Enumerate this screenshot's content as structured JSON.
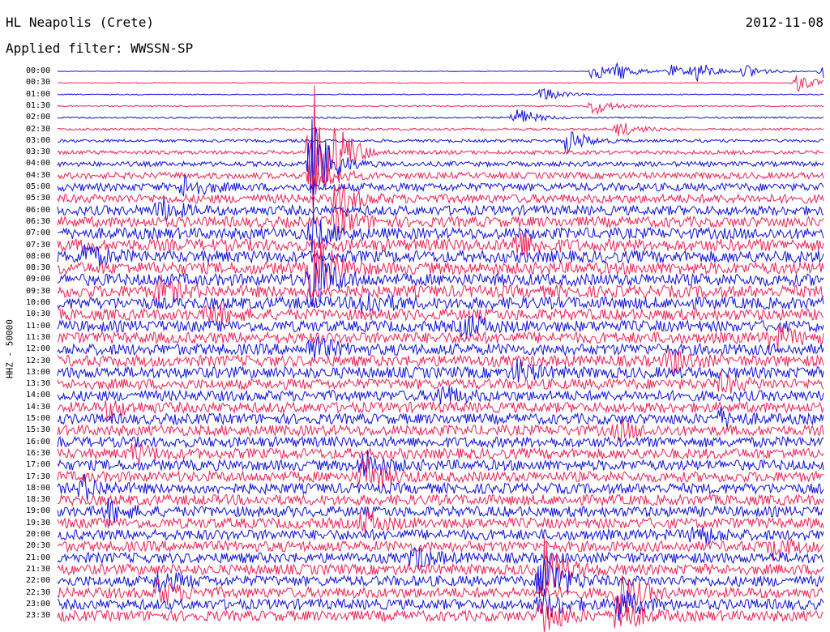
{
  "header": {
    "station_title": "HL Neapolis (Crete)",
    "date": "2012-11-08",
    "filter_prefix": "Applied filter:",
    "filter_name": "WWSSN-SP",
    "channel_label": "HHZ - 50000"
  },
  "colors": {
    "even_trace": "#1010dd",
    "odd_trace": "#ee2255",
    "text": "#000000",
    "background": "#ffffff"
  },
  "chart_data": {
    "type": "line",
    "title": "HL Neapolis (Crete)",
    "subtitle": "Applied filter: WWSSN-SP",
    "ylabel": "HHZ - 50000",
    "xlabel": "",
    "row_labels": [
      "00:00",
      "00:30",
      "01:00",
      "01:30",
      "02:00",
      "02:30",
      "03:00",
      "03:30",
      "04:00",
      "04:30",
      "05:00",
      "05:30",
      "06:00",
      "06:30",
      "07:00",
      "07:30",
      "08:00",
      "08:30",
      "09:00",
      "09:30",
      "10:00",
      "10:30",
      "11:00",
      "11:30",
      "12:00",
      "12:30",
      "13:00",
      "13:30",
      "14:00",
      "14:30",
      "15:00",
      "15:30",
      "16:00",
      "16:30",
      "17:00",
      "17:30",
      "18:00",
      "18:30",
      "19:00",
      "19:30",
      "20:00",
      "20:30",
      "21:00",
      "21:30",
      "22:00",
      "22:30",
      "23:00",
      "23:30"
    ],
    "row_noise_level": [
      0.3,
      0.5,
      0.6,
      0.8,
      1.0,
      1.4,
      1.8,
      2.4,
      3.0,
      4.0,
      5.0,
      5.5,
      6.0,
      6.5,
      7.0,
      7.5,
      7.5,
      7.5,
      7.5,
      7.5,
      7.5,
      7.0,
      7.0,
      7.0,
      7.0,
      7.0,
      7.0,
      6.5,
      6.5,
      6.5,
      6.5,
      6.5,
      6.5,
      6.5,
      6.5,
      6.5,
      6.5,
      6.5,
      6.5,
      6.5,
      6.5,
      6.5,
      6.5,
      6.5,
      6.5,
      6.5,
      6.5,
      6.5
    ],
    "events": [
      {
        "row": 0,
        "minute": 25,
        "amplitude": 14
      },
      {
        "row": 0,
        "minute": 22,
        "amplitude": 10
      },
      {
        "row": 0,
        "minute": 27,
        "amplitude": 10
      },
      {
        "row": 0,
        "minute": 21,
        "amplitude": 12
      },
      {
        "row": 0,
        "minute": 24,
        "amplitude": 8
      },
      {
        "row": 0,
        "minute": 30,
        "amplitude": 8
      },
      {
        "row": 1,
        "minute": 29,
        "amplitude": 12
      },
      {
        "row": 2,
        "minute": 19,
        "amplitude": 10
      },
      {
        "row": 3,
        "minute": 21,
        "amplitude": 12
      },
      {
        "row": 4,
        "minute": 18,
        "amplitude": 14
      },
      {
        "row": 5,
        "minute": 22,
        "amplitude": 10
      },
      {
        "row": 6,
        "minute": 20,
        "amplitude": 16
      },
      {
        "row": 7,
        "minute": 11,
        "amplitude": 20
      },
      {
        "row": 7,
        "minute": 10,
        "amplitude": 90
      },
      {
        "row": 8,
        "minute": 10,
        "amplitude": 60
      },
      {
        "row": 9,
        "minute": 10,
        "amplitude": 25
      },
      {
        "row": 10,
        "minute": 5,
        "amplitude": 14
      },
      {
        "row": 11,
        "minute": 11,
        "amplitude": 20
      },
      {
        "row": 12,
        "minute": 4,
        "amplitude": 14
      },
      {
        "row": 13,
        "minute": 11,
        "amplitude": 18
      },
      {
        "row": 14,
        "minute": 10,
        "amplitude": 20
      },
      {
        "row": 15,
        "minute": 18,
        "amplitude": 18
      },
      {
        "row": 16,
        "minute": 1,
        "amplitude": 16
      },
      {
        "row": 17,
        "minute": 10,
        "amplitude": 50
      },
      {
        "row": 18,
        "minute": 10,
        "amplitude": 40
      },
      {
        "row": 19,
        "minute": 4,
        "amplitude": 15
      },
      {
        "row": 20,
        "minute": 12,
        "amplitude": 16
      },
      {
        "row": 21,
        "minute": 6,
        "amplitude": 12
      },
      {
        "row": 22,
        "minute": 16,
        "amplitude": 14
      },
      {
        "row": 23,
        "minute": 28,
        "amplitude": 15
      },
      {
        "row": 24,
        "minute": 10,
        "amplitude": 16
      },
      {
        "row": 25,
        "minute": 24,
        "amplitude": 14
      },
      {
        "row": 26,
        "minute": 18,
        "amplitude": 12
      },
      {
        "row": 27,
        "minute": 26,
        "amplitude": 10
      },
      {
        "row": 28,
        "minute": 15,
        "amplitude": 12
      },
      {
        "row": 29,
        "minute": 2,
        "amplitude": 10
      },
      {
        "row": 30,
        "minute": 26,
        "amplitude": 10
      },
      {
        "row": 31,
        "minute": 22,
        "amplitude": 10
      },
      {
        "row": 33,
        "minute": 3,
        "amplitude": 12
      },
      {
        "row": 34,
        "minute": 12,
        "amplitude": 18
      },
      {
        "row": 35,
        "minute": 12,
        "amplitude": 24
      },
      {
        "row": 36,
        "minute": 1,
        "amplitude": 14
      },
      {
        "row": 38,
        "minute": 2,
        "amplitude": 12
      },
      {
        "row": 39,
        "minute": 12,
        "amplitude": 14
      },
      {
        "row": 40,
        "minute": 25,
        "amplitude": 12
      },
      {
        "row": 41,
        "minute": 28,
        "amplitude": 12
      },
      {
        "row": 42,
        "minute": 14,
        "amplitude": 12
      },
      {
        "row": 43,
        "minute": 19,
        "amplitude": 40
      },
      {
        "row": 44,
        "minute": 19,
        "amplitude": 40
      },
      {
        "row": 44,
        "minute": 4,
        "amplitude": 14
      },
      {
        "row": 45,
        "minute": 4,
        "amplitude": 16
      },
      {
        "row": 45,
        "minute": 22,
        "amplitude": 30
      },
      {
        "row": 46,
        "minute": 22,
        "amplitude": 20
      },
      {
        "row": 46,
        "minute": 19,
        "amplitude": 18
      },
      {
        "row": 47,
        "minute": 19,
        "amplitude": 24
      },
      {
        "row": 47,
        "minute": 22,
        "amplitude": 24
      }
    ]
  }
}
